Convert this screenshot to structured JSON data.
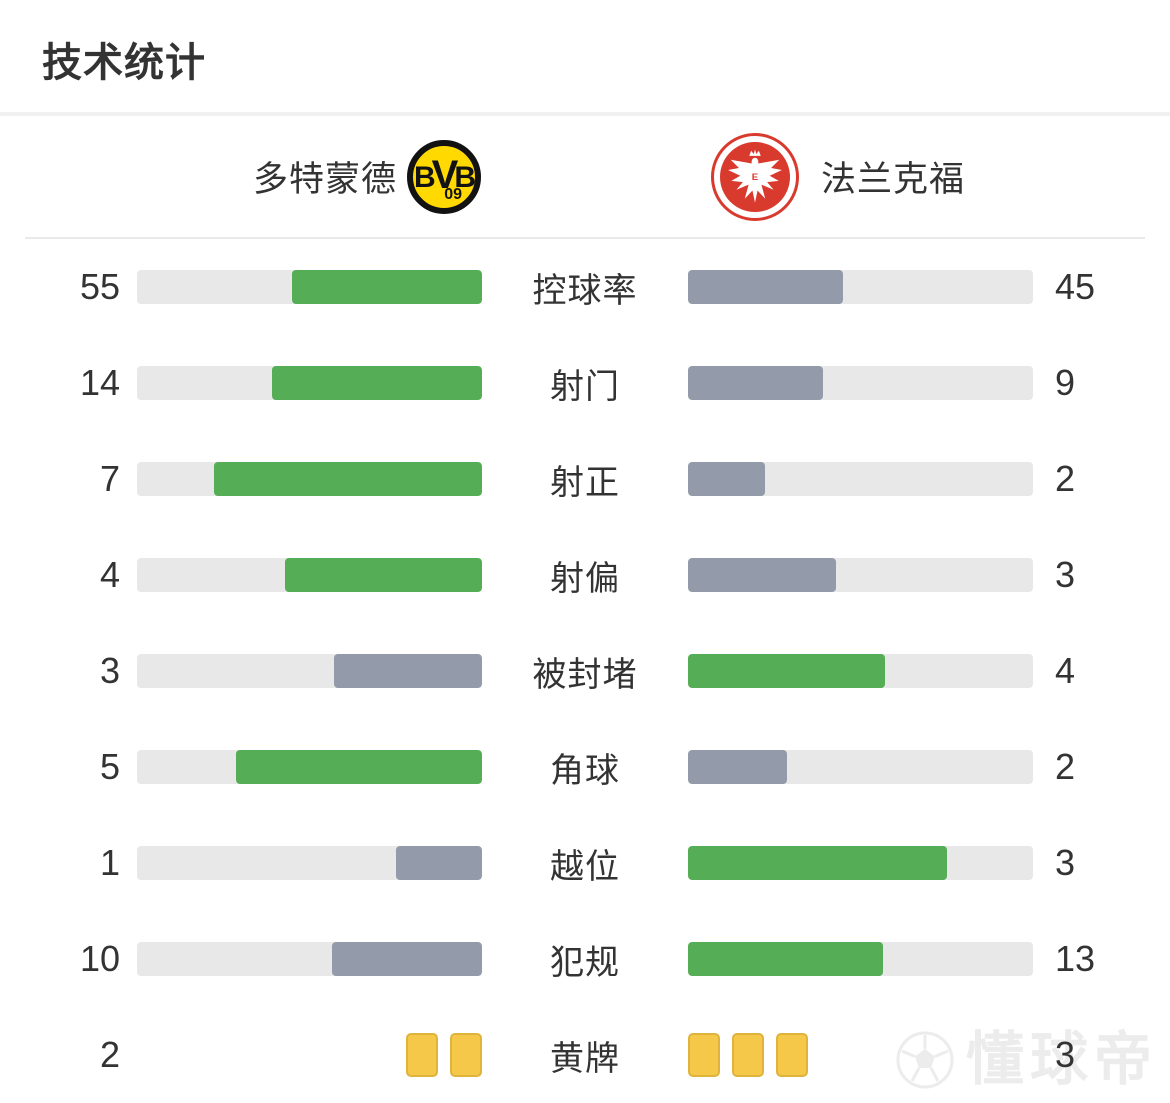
{
  "title": "技术统计",
  "teams": {
    "home": {
      "name": "多特蒙德",
      "badge_letters": "BVB",
      "badge_sub": "09"
    },
    "away": {
      "name": "法兰克福"
    }
  },
  "colors": {
    "green": "#55ad55",
    "gray": "#939aa9",
    "track": "#e8e8e8",
    "text": "#333333",
    "yellow_card": "#f5c84a",
    "yellow_card_border": "#dfb43c",
    "bvb_yellow": "#ffd900",
    "frankfurt_red": "#d93a2e",
    "watermark": "#ececec"
  },
  "stats": {
    "rows": [
      {
        "type": "bar",
        "label": "控球率",
        "home": 55,
        "away": 45,
        "home_color": "green",
        "away_color": "gray"
      },
      {
        "type": "bar",
        "label": "射门",
        "home": 14,
        "away": 9,
        "home_color": "green",
        "away_color": "gray"
      },
      {
        "type": "bar",
        "label": "射正",
        "home": 7,
        "away": 2,
        "home_color": "green",
        "away_color": "gray"
      },
      {
        "type": "bar",
        "label": "射偏",
        "home": 4,
        "away": 3,
        "home_color": "green",
        "away_color": "gray"
      },
      {
        "type": "bar",
        "label": "被封堵",
        "home": 3,
        "away": 4,
        "home_color": "gray",
        "away_color": "green"
      },
      {
        "type": "bar",
        "label": "角球",
        "home": 5,
        "away": 2,
        "home_color": "green",
        "away_color": "gray"
      },
      {
        "type": "bar",
        "label": "越位",
        "home": 1,
        "away": 3,
        "home_color": "gray",
        "away_color": "green"
      },
      {
        "type": "bar",
        "label": "犯规",
        "home": 10,
        "away": 13,
        "home_color": "gray",
        "away_color": "green"
      },
      {
        "type": "cards",
        "label": "黄牌",
        "home": 2,
        "away": 3,
        "home_color": "gray",
        "away_color": "green"
      }
    ]
  },
  "watermark": {
    "text": "懂球帝",
    "icon": "soccer-ball-icon"
  },
  "chart_data": {
    "type": "bar",
    "title": "技术统计",
    "orientation": "horizontal-mirrored",
    "categories": [
      "控球率",
      "射门",
      "射正",
      "射偏",
      "被封堵",
      "角球",
      "越位",
      "犯规",
      "黄牌"
    ],
    "series": [
      {
        "name": "多特蒙德",
        "values": [
          55,
          14,
          7,
          4,
          3,
          5,
          1,
          10,
          2
        ]
      },
      {
        "name": "法兰克福",
        "values": [
          45,
          9,
          2,
          3,
          4,
          2,
          3,
          13,
          3
        ]
      }
    ],
    "notes": "Each bar fill = value / (home+away) of its row; larger value shown green (#55ad55), smaller gray (#939aa9); 黄牌 row rendered as yellow card icons instead of bars",
    "legend_position": "top",
    "grid": false
  }
}
